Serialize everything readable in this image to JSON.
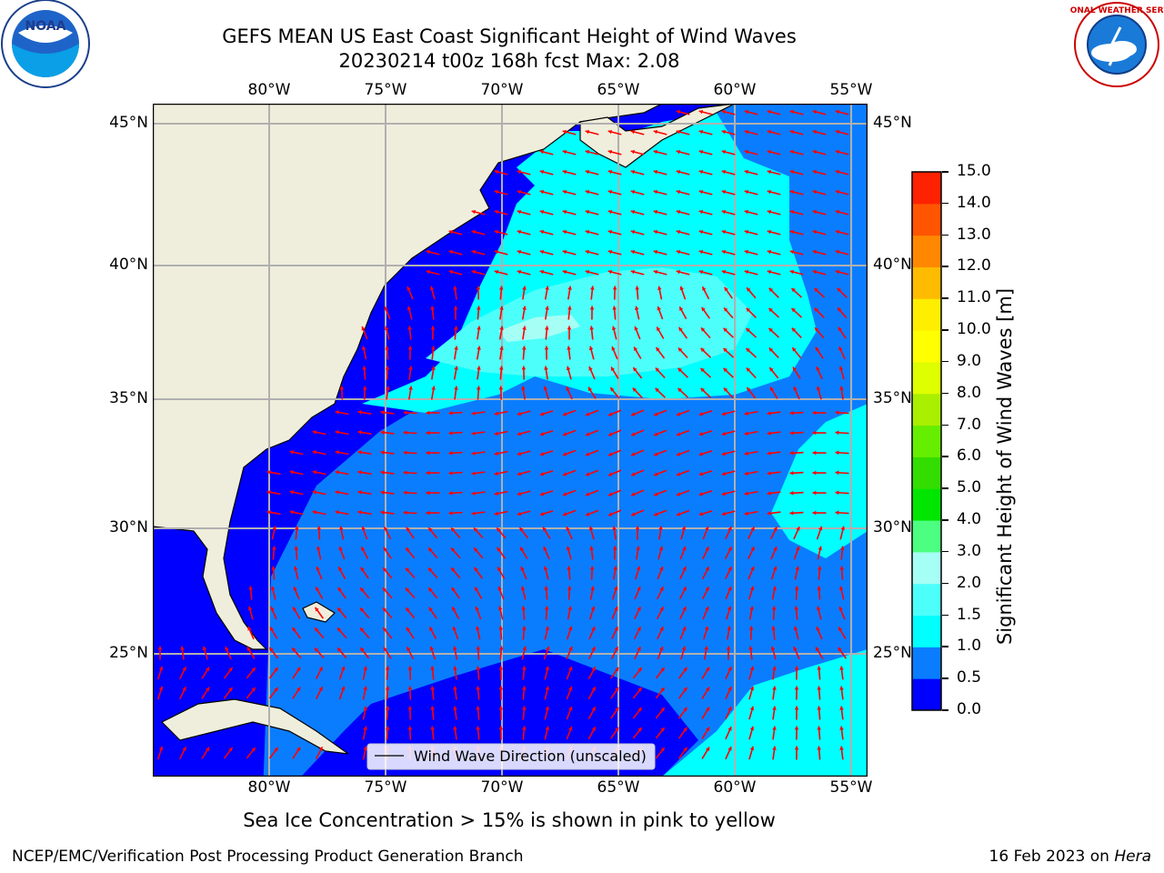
{
  "title": {
    "line1": "GEFS MEAN US East Coast Significant Height of Wind Waves",
    "line2": "20230214 t00z 168h fcst   Max: 2.08"
  },
  "logos": {
    "left_text": "NOAA",
    "right_text": "NATIONAL WEATHER SERVICE"
  },
  "map": {
    "lon_ticks": [
      "80°W",
      "75°W",
      "70°W",
      "65°W",
      "60°W",
      "55°W"
    ],
    "lat_ticks": [
      "45°N",
      "40°N",
      "35°N",
      "30°N",
      "25°N"
    ],
    "legend_label": "Wind Wave Direction (unscaled)",
    "colors": {
      "land": "#efeedc",
      "bin_0_0_5": "#0000ff",
      "bin_0_5_1": "#0a7dff",
      "bin_1_1_5": "#00ffff",
      "bin_1_5_2": "#4dfffa",
      "bin_2_3": "#a6fff5",
      "arrow": "#ff0000"
    }
  },
  "colorbar": {
    "label": "Significant Height of Wind Waves [m]",
    "ticks": [
      "15.0",
      "14.0",
      "13.0",
      "12.0",
      "11.0",
      "10.0",
      "9.0",
      "8.0",
      "7.0",
      "6.0",
      "5.0",
      "4.0",
      "3.0",
      "2.0",
      "1.5",
      "1.0",
      "0.5",
      "0.0"
    ],
    "colors": [
      "#0000ff",
      "#0a7dff",
      "#00ffff",
      "#4dfffa",
      "#a6fff5",
      "#4dff80",
      "#00e600",
      "#33dd00",
      "#66ee00",
      "#aaee00",
      "#ddff00",
      "#ffff00",
      "#ffee00",
      "#ffbb00",
      "#ff8800",
      "#ff5500",
      "#ff2200"
    ]
  },
  "note": "Sea Ice Concentration > 15% is shown in pink to yellow",
  "footer": {
    "left": "NCEP/EMC/Verification Post Processing Product Generation Branch",
    "right_date": "16 Feb 2023 on ",
    "right_host": "Hera"
  }
}
